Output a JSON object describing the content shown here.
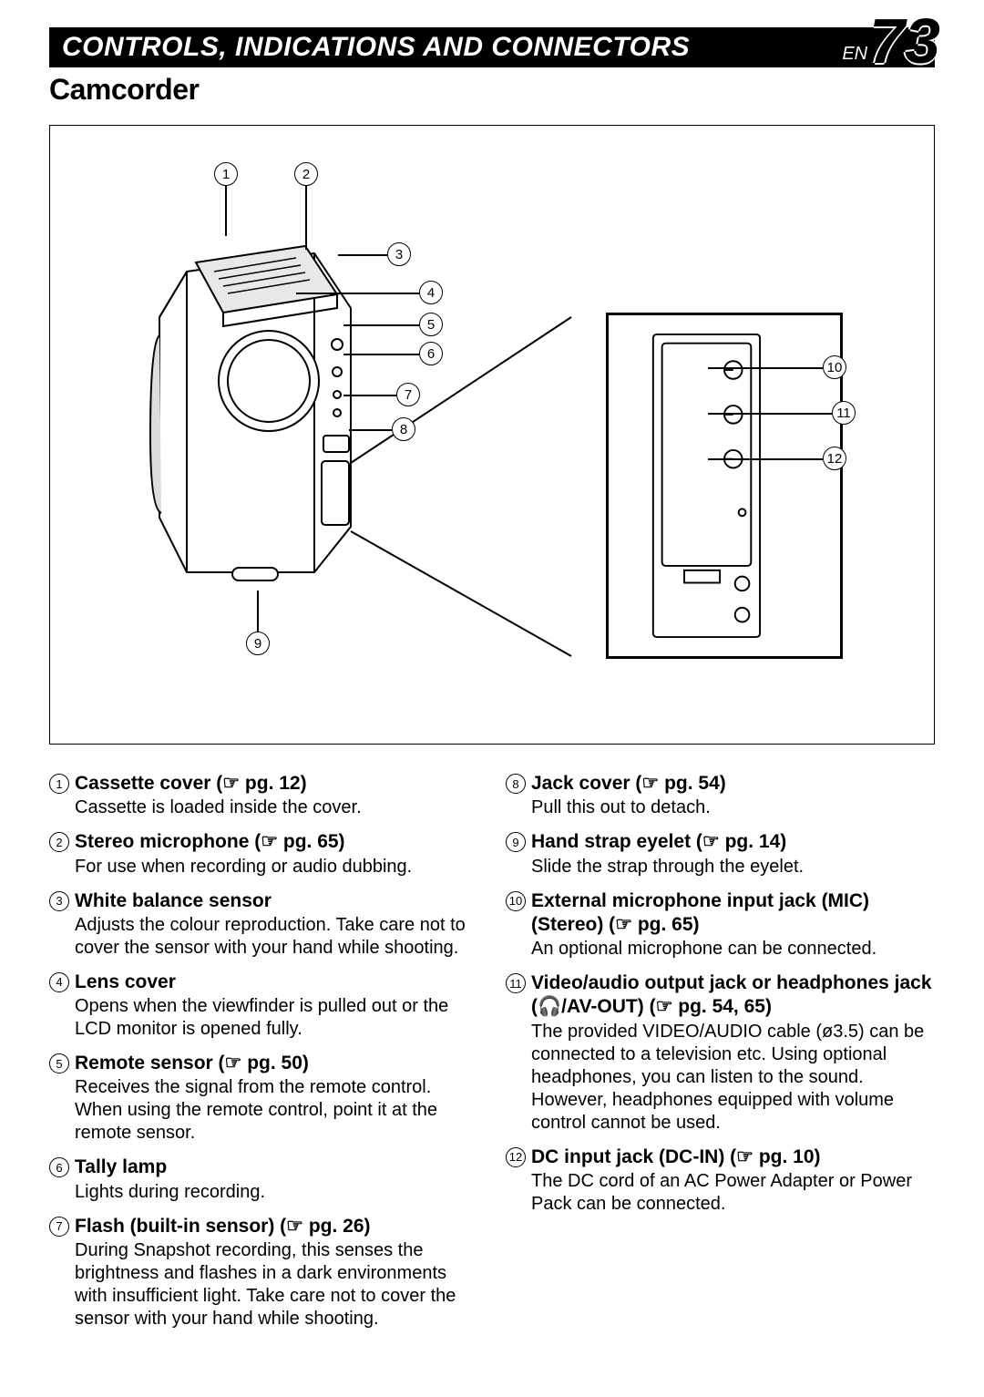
{
  "header": {
    "title": "CONTROLS, INDICATIONS AND CONNECTORS",
    "lang": "EN",
    "page": "73"
  },
  "subtitle": "Camcorder",
  "callouts": [
    "1",
    "2",
    "3",
    "4",
    "5",
    "6",
    "7",
    "8",
    "9",
    "10",
    "11",
    "12"
  ],
  "left": [
    {
      "n": "1",
      "title_pre": "Cassette cover (",
      "title_pg": "☞ pg. 12",
      "title_post": ")",
      "desc": "Cassette is loaded inside the cover."
    },
    {
      "n": "2",
      "title_pre": "Stereo microphone (",
      "title_pg": "☞ pg. 65",
      "title_post": ")",
      "desc": "For use when recording or audio dubbing."
    },
    {
      "n": "3",
      "title_pre": "White balance sensor",
      "title_pg": "",
      "title_post": "",
      "desc": "Adjusts the colour reproduction. Take care not to cover the sensor with your hand while shooting."
    },
    {
      "n": "4",
      "title_pre": "Lens cover",
      "title_pg": "",
      "title_post": "",
      "desc": "Opens when the viewfinder is pulled out or the LCD monitor is opened fully."
    },
    {
      "n": "5",
      "title_pre": "Remote sensor (",
      "title_pg": "☞ pg. 50",
      "title_post": ")",
      "desc": "Receives the signal from the remote control. When using the remote control, point it at the remote sensor."
    },
    {
      "n": "6",
      "title_pre": "Tally lamp",
      "title_pg": "",
      "title_post": "",
      "desc": "Lights during recording."
    },
    {
      "n": "7",
      "title_pre": "Flash (built-in sensor) (",
      "title_pg": "☞ pg. 26",
      "title_post": ")",
      "desc": "During Snapshot recording, this senses the brightness and flashes in a dark environments with insufficient light. Take care not to cover the sensor with your hand while shooting."
    }
  ],
  "right": [
    {
      "n": "8",
      "title_pre": "Jack cover (",
      "title_pg": "☞ pg. 54",
      "title_post": ")",
      "desc": "Pull this out to detach."
    },
    {
      "n": "9",
      "title_pre": "Hand strap eyelet (",
      "title_pg": "☞ pg. 14",
      "title_post": ")",
      "desc": "Slide the strap through the eyelet."
    },
    {
      "n": "10",
      "title_pre": "External microphone input jack (MIC) (Stereo) (",
      "title_pg": "☞ pg. 65",
      "title_post": ")",
      "desc": "An optional microphone can be connected."
    },
    {
      "n": "11",
      "title_pre": "Video/audio output jack or headphones jack (🎧/AV-OUT) (",
      "title_pg": "☞ pg. 54, 65",
      "title_post": ")",
      "desc": "The provided VIDEO/AUDIO cable (ø3.5) can be connected to a television etc. Using optional headphones, you can listen to the sound. However, headphones equipped with volume control cannot be used."
    },
    {
      "n": "12",
      "title_pre": "DC input jack (DC-IN) (",
      "title_pg": "☞ pg. 10",
      "title_post": ")",
      "desc": "The DC cord of an AC Power Adapter or Power Pack can be connected."
    }
  ]
}
